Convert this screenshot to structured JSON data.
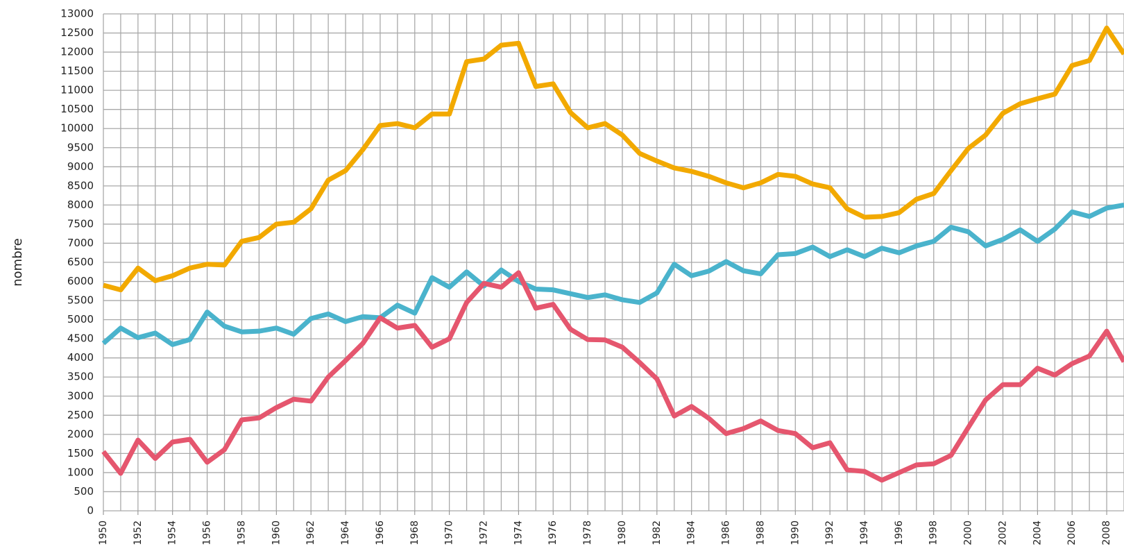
{
  "chart_data": {
    "type": "line",
    "y_label": "nombre",
    "x": [
      1950,
      1951,
      1952,
      1953,
      1954,
      1955,
      1956,
      1957,
      1958,
      1959,
      1960,
      1961,
      1962,
      1963,
      1964,
      1965,
      1966,
      1967,
      1968,
      1969,
      1970,
      1971,
      1972,
      1973,
      1974,
      1975,
      1976,
      1977,
      1978,
      1979,
      1980,
      1981,
      1982,
      1983,
      1984,
      1985,
      1986,
      1987,
      1988,
      1989,
      1990,
      1991,
      1992,
      1993,
      1994,
      1995,
      1996,
      1997,
      1998,
      1999,
      2000,
      2001,
      2002,
      2003,
      2004,
      2005,
      2006,
      2007,
      2008,
      2009
    ],
    "series": [
      {
        "color": "#f2a900",
        "values": [
          5900,
          5780,
          6350,
          6020,
          6150,
          6350,
          6450,
          6430,
          7050,
          7150,
          7500,
          7550,
          7900,
          8650,
          8900,
          9450,
          10080,
          10130,
          10020,
          10380,
          10380,
          11750,
          11820,
          12180,
          12230,
          11100,
          11170,
          10420,
          10020,
          10130,
          9830,
          9350,
          9150,
          8970,
          8880,
          8750,
          8580,
          8450,
          8580,
          8800,
          8750,
          8550,
          8450,
          7900,
          7680,
          7700,
          7800,
          8150,
          8300,
          8900,
          9480,
          9830,
          10400,
          10650,
          10780,
          10900,
          11650,
          11780,
          12630,
          11950
        ]
      },
      {
        "color": "#4ab3cc",
        "values": [
          4380,
          4780,
          4530,
          4650,
          4350,
          4480,
          5200,
          4830,
          4680,
          4700,
          4780,
          4620,
          5030,
          5150,
          4950,
          5080,
          5050,
          5380,
          5170,
          6100,
          5850,
          6250,
          5880,
          6300,
          6000,
          5800,
          5780,
          5680,
          5580,
          5650,
          5520,
          5450,
          5700,
          6450,
          6150,
          6270,
          6520,
          6280,
          6200,
          6700,
          6730,
          6900,
          6650,
          6830,
          6650,
          6870,
          6750,
          6930,
          7050,
          7420,
          7300,
          6930,
          7100,
          7350,
          7050,
          7370,
          7820,
          7700,
          7920,
          8000
        ]
      },
      {
        "color": "#e5566e",
        "values": [
          1550,
          980,
          1850,
          1370,
          1800,
          1870,
          1270,
          1600,
          2380,
          2430,
          2700,
          2920,
          2870,
          3500,
          3930,
          4380,
          5050,
          4780,
          4850,
          4280,
          4500,
          5450,
          5950,
          5850,
          6230,
          5300,
          5400,
          4750,
          4480,
          4470,
          4280,
          3880,
          3450,
          2480,
          2730,
          2420,
          2020,
          2150,
          2350,
          2100,
          2020,
          1650,
          1780,
          1070,
          1030,
          800,
          1000,
          1200,
          1230,
          1450,
          2180,
          2900,
          3300,
          3300,
          3730,
          3550,
          3850,
          4050,
          4700,
          3900
        ]
      }
    ],
    "xlim": [
      1950,
      2009
    ],
    "xticks": [
      1950,
      1952,
      1954,
      1956,
      1958,
      1960,
      1962,
      1964,
      1966,
      1968,
      1970,
      1972,
      1974,
      1976,
      1978,
      1980,
      1982,
      1984,
      1986,
      1988,
      1990,
      1992,
      1994,
      1996,
      1998,
      2000,
      2002,
      2004,
      2006,
      2008
    ],
    "ylim": [
      0,
      13000
    ],
    "yticks": [
      0,
      500,
      1000,
      1500,
      2000,
      2500,
      3000,
      3500,
      4000,
      4500,
      5000,
      5500,
      6000,
      6500,
      7000,
      7500,
      8000,
      8500,
      9000,
      9500,
      10000,
      10500,
      11000,
      11500,
      12000,
      12500,
      13000
    ],
    "grid": true
  }
}
